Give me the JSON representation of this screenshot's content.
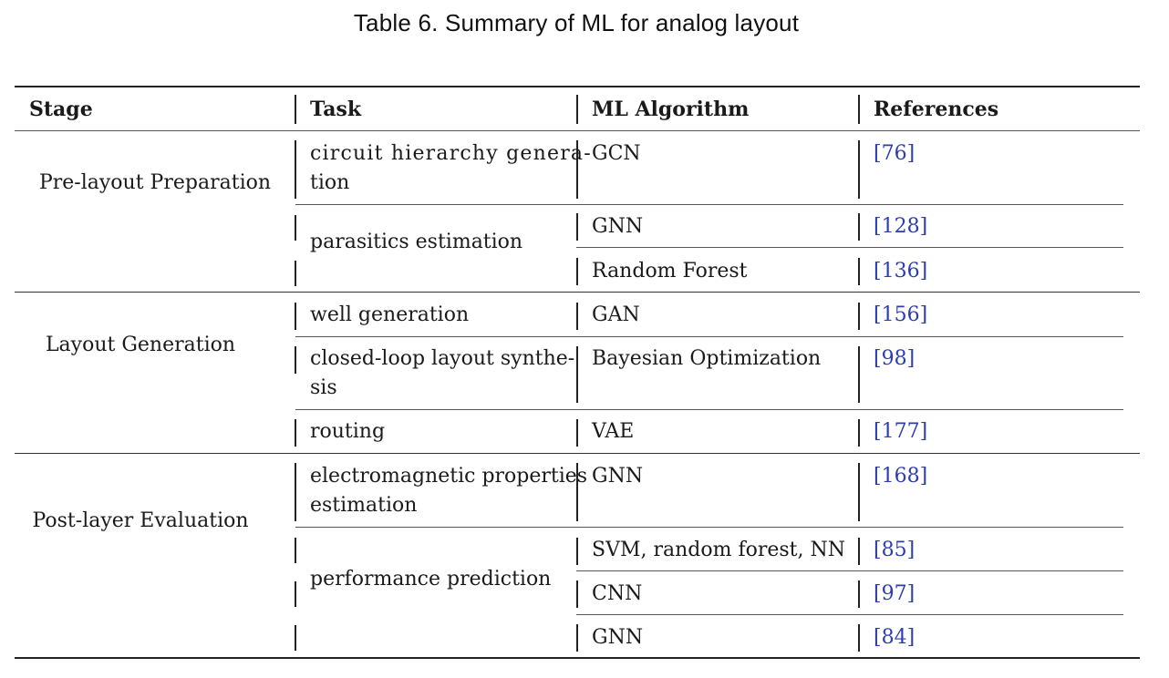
{
  "caption": "Table 6.  Summary of ML for analog layout",
  "headers": {
    "stage": "Stage",
    "task": "Task",
    "algorithm": "ML Algorithm",
    "references": "References"
  },
  "stages": [
    "Pre-layout Preparation",
    "Layout Generation",
    "Post-layer Evaluation"
  ],
  "tasks": [
    {
      "line1": "circuit hierarchy genera-",
      "line2": "tion"
    },
    {
      "line1": "parasitics estimation",
      "line2": ""
    },
    {
      "line1": "well generation",
      "line2": ""
    },
    {
      "line1": "closed-loop layout synthe-",
      "line2": "sis"
    },
    {
      "line1": "routing",
      "line2": ""
    },
    {
      "line1": "electromagnetic properties",
      "line2": "estimation"
    },
    {
      "line1": "performance prediction",
      "line2": ""
    }
  ],
  "rows": [
    {
      "algorithm": "GCN",
      "ref": "76"
    },
    {
      "algorithm": "GNN",
      "ref": "128"
    },
    {
      "algorithm": "Random Forest",
      "ref": "136"
    },
    {
      "algorithm": "GAN",
      "ref": "156"
    },
    {
      "algorithm": "Bayesian Optimization",
      "ref": "98"
    },
    {
      "algorithm": "VAE",
      "ref": "177"
    },
    {
      "algorithm": "GNN",
      "ref": "168"
    },
    {
      "algorithm": "SVM, random forest, NN",
      "ref": "85"
    },
    {
      "algorithm": "CNN",
      "ref": "97"
    },
    {
      "algorithm": "GNN",
      "ref": "84"
    }
  ],
  "colors": {
    "text": "#1a1a1a",
    "reference_link": "#2d3db0",
    "rule": "#222222"
  }
}
